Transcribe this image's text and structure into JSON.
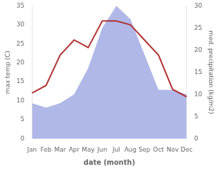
{
  "chart_data": {
    "type": "line",
    "categories": [
      "Jan",
      "Feb",
      "Mar",
      "Apr",
      "May",
      "Jun",
      "Jul",
      "Aug",
      "Sep",
      "Oct",
      "Nov",
      "Dec"
    ],
    "xlabel": "date (month)",
    "ylabel": "max temp (C)",
    "y2label": "med. precipitation (kg/m2)",
    "series": [
      {
        "type": "line",
        "color": "#b03030",
        "values": [
          12,
          14,
          22,
          26,
          24,
          31,
          31,
          30,
          26,
          22,
          13,
          11
        ]
      },
      {
        "type": "area",
        "color": "#b0b8e8",
        "axis": "y2",
        "values": [
          8,
          7,
          8,
          10,
          16,
          25,
          30,
          27,
          19,
          11,
          11,
          10
        ]
      }
    ],
    "ylim": [
      0,
      35
    ],
    "yticks": [
      0,
      5,
      10,
      15,
      20,
      25,
      30,
      35
    ],
    "y2lim": [
      0,
      30
    ],
    "y2ticks": [
      0,
      5,
      10,
      15,
      20,
      25,
      30
    ],
    "grid": false
  }
}
